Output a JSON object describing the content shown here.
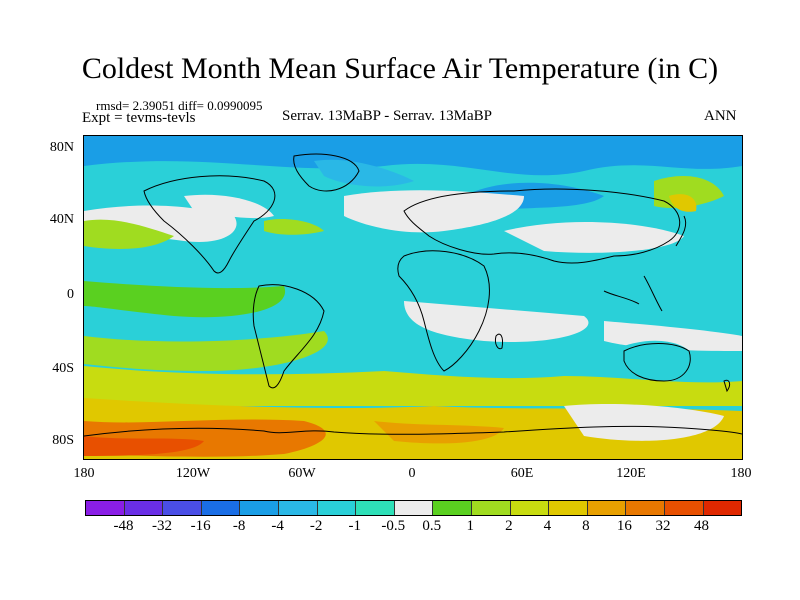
{
  "title": "Coldest Month Mean Surface Air Temperature (in C)",
  "stats": "rmsd= 2.39051 diff= 0.0990095",
  "expt": "Expt = tevms-tevls",
  "experiment": "Serrav.    13MaBP - Serrav.    13MaBP",
  "season": "ANN",
  "lat_labels": [
    "80N",
    "40N",
    "0",
    "40S",
    "80S"
  ],
  "lon_labels": [
    "180",
    "120W",
    "60W",
    "0",
    "60E",
    "120E",
    "180"
  ],
  "colorbar": {
    "colors": [
      "#8a1ee6",
      "#6a2ee6",
      "#4a4ee6",
      "#1a6ee6",
      "#1a9ee6",
      "#2ab8e6",
      "#2ad0d8",
      "#2ee0b8",
      "#ececec",
      "#5ad020",
      "#a0dc20",
      "#c8dc10",
      "#e0c800",
      "#e8a000",
      "#e87800",
      "#e85000",
      "#e02800"
    ],
    "labels": [
      "-48",
      "-32",
      "-16",
      "-8",
      "-4",
      "-2",
      "-1",
      "-0.5",
      "0.5",
      "1",
      "2",
      "4",
      "8",
      "16",
      "32",
      "48"
    ]
  }
}
